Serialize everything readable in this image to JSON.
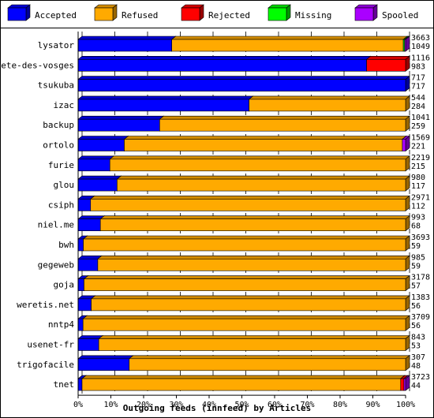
{
  "chart_data": {
    "type": "bar",
    "orientation": "horizontal",
    "stacking": "percent",
    "title": "",
    "xlabel": "Outgoing feeds (innfeed) by Articles",
    "ylabel": "",
    "xlim": [
      0,
      100
    ],
    "x_ticks": [
      "0%",
      "10%",
      "20%",
      "30%",
      "40%",
      "50%",
      "60%",
      "70%",
      "80%",
      "90%",
      "100%"
    ],
    "grid": "vertical-dashed",
    "legend": "top",
    "categories": [
      "lysator",
      "bete-des-vosges",
      "tsukuba",
      "izac",
      "backup",
      "ortolo",
      "furie",
      "glou",
      "csiph",
      "niel.me",
      "bwh",
      "gegeweb",
      "goja",
      "weretis.net",
      "nntp4",
      "usenet-fr",
      "trigofacile",
      "tnet"
    ],
    "totals": [
      "3663",
      "1116",
      "717",
      "544",
      "1041",
      "1569",
      "2219",
      "980",
      "2971",
      "993",
      "3693",
      "985",
      "3178",
      "1383",
      "3709",
      "843",
      "307",
      "3723"
    ],
    "accepted_counts": [
      "1049",
      "983",
      "717",
      "284",
      "259",
      "221",
      "215",
      "117",
      "112",
      "68",
      "59",
      "59",
      "57",
      "56",
      "56",
      "53",
      "48",
      "44"
    ],
    "series": [
      {
        "name": "Accepted",
        "color": "#0000ff",
        "values": [
          28.6,
          88.1,
          100,
          52.2,
          24.9,
          14.1,
          9.7,
          11.9,
          3.8,
          6.8,
          1.6,
          6.0,
          1.8,
          4.0,
          1.5,
          6.3,
          15.6,
          1.2
        ]
      },
      {
        "name": "Refused",
        "color": "#ffaa00",
        "values": [
          70.7,
          0,
          0,
          47.8,
          75.1,
          84.9,
          90.3,
          88.1,
          96.2,
          93.2,
          98.4,
          94.0,
          98.2,
          96.0,
          98.5,
          93.7,
          84.4,
          97.3
        ]
      },
      {
        "name": "Rejected",
        "color": "#ff0000",
        "values": [
          0,
          11.9,
          0,
          0,
          0,
          0,
          0,
          0,
          0,
          0,
          0,
          0,
          0,
          0,
          0,
          0,
          0,
          1.0
        ]
      },
      {
        "name": "Missing",
        "color": "#00ff00",
        "values": [
          0.4,
          0,
          0,
          0,
          0,
          0,
          0,
          0,
          0,
          0,
          0,
          0,
          0,
          0,
          0,
          0,
          0,
          0
        ]
      },
      {
        "name": "Spooled",
        "color": "#aa00ff",
        "values": [
          0.3,
          0,
          0,
          0,
          0,
          1.0,
          0,
          0,
          0,
          0,
          0,
          0,
          0,
          0,
          0,
          0,
          0,
          0.5
        ]
      }
    ]
  }
}
